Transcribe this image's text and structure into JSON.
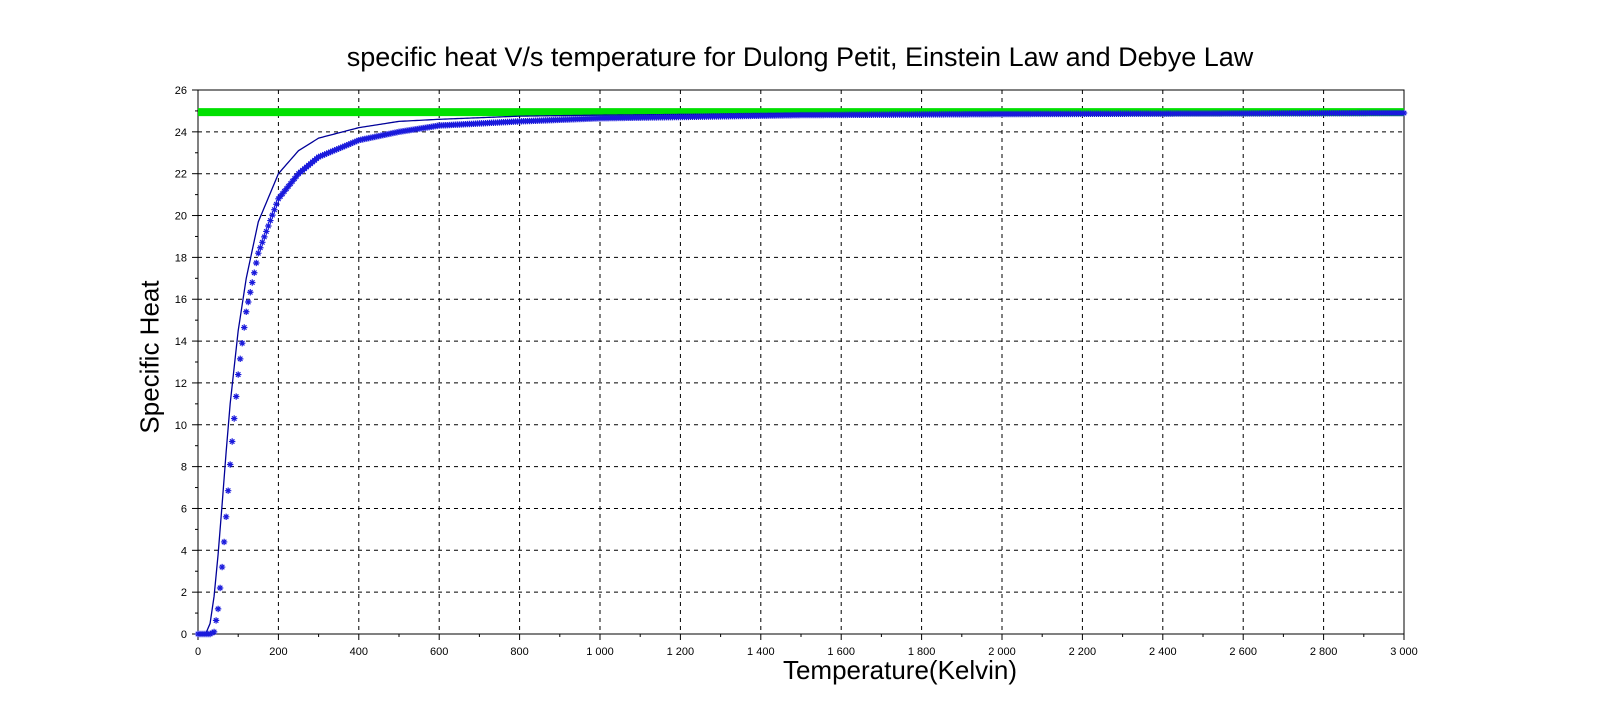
{
  "chart_data": {
    "type": "line",
    "title": "specific heat V/s temperature for Dulong Petit, Einstein Law and Debye Law",
    "xlabel": "Temperature(Kelvin)",
    "ylabel": "Specific Heat",
    "xlim": [
      0,
      3000
    ],
    "ylim": [
      0,
      26
    ],
    "grid": true,
    "x_ticks": [
      "0",
      "200",
      "400",
      "600",
      "800",
      "1 000",
      "1 200",
      "1 400",
      "1 600",
      "1 800",
      "2 000",
      "2 200",
      "2 400",
      "2 600",
      "2 800",
      "3 000"
    ],
    "y_ticks": [
      "0",
      "2",
      "4",
      "6",
      "8",
      "10",
      "12",
      "14",
      "16",
      "18",
      "20",
      "22",
      "24",
      "26"
    ],
    "series": [
      {
        "color": "#00e000",
        "style": "thick-line",
        "x": [
          0,
          3000
        ],
        "y": [
          24.94,
          24.94
        ]
      },
      {
        "color": "#000099",
        "style": "thin-line",
        "x": [
          0,
          20,
          30,
          40,
          50,
          60,
          70,
          80,
          100,
          120,
          150,
          200,
          250,
          300,
          400,
          500,
          600,
          800,
          1000,
          1500,
          2000,
          3000
        ],
        "y": [
          0,
          0.05,
          0.5,
          1.8,
          3.8,
          6.2,
          8.7,
          11.0,
          14.5,
          17.0,
          19.7,
          22.0,
          23.1,
          23.7,
          24.2,
          24.5,
          24.6,
          24.75,
          24.8,
          24.88,
          24.9,
          24.92
        ]
      },
      {
        "color": "#1a1adc",
        "style": "asterisk-markers",
        "x": [
          0,
          30,
          40,
          50,
          60,
          70,
          80,
          90,
          100,
          120,
          150,
          200,
          250,
          300,
          400,
          500,
          600,
          800,
          1000,
          1500,
          2000,
          3000
        ],
        "y": [
          0,
          0,
          0.1,
          1.2,
          3.2,
          5.6,
          8.1,
          10.3,
          12.4,
          15.4,
          18.2,
          20.8,
          22.0,
          22.8,
          23.6,
          24.0,
          24.3,
          24.5,
          24.65,
          24.8,
          24.85,
          24.9
        ]
      }
    ]
  }
}
